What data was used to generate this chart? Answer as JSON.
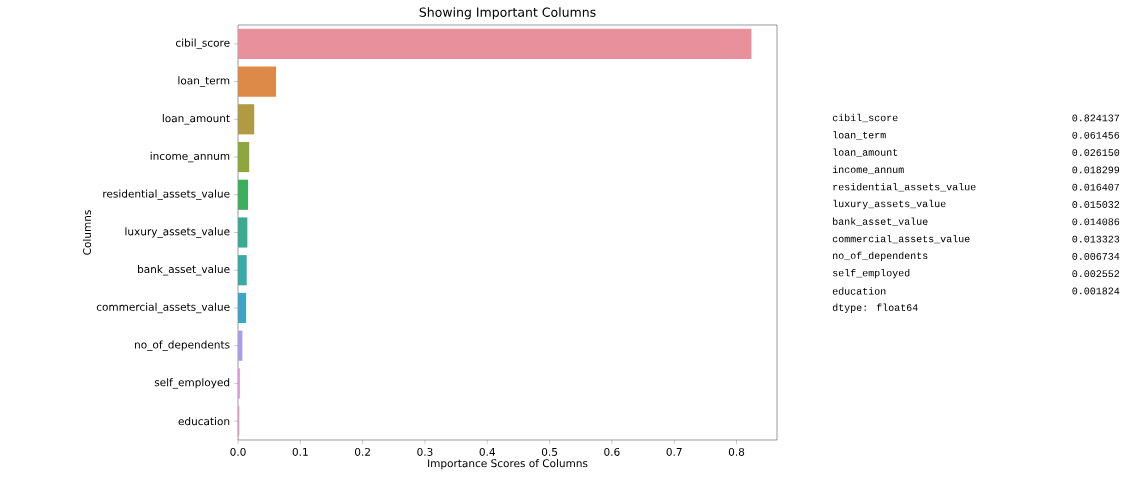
{
  "chart_data": [
    {
      "type": "bar",
      "orientation": "horizontal",
      "title": "Showing Important Columns",
      "xlabel": "Importance Scores of Columns",
      "ylabel": "Columns",
      "categories": [
        "cibil_score",
        "loan_term",
        "loan_amount",
        "income_annum",
        "residential_assets_value",
        "luxury_assets_value",
        "bank_asset_value",
        "commercial_assets_value",
        "no_of_dependents",
        "self_employed",
        "education"
      ],
      "values": [
        0.824,
        0.061,
        0.026,
        0.018,
        0.016,
        0.015,
        0.014,
        0.013,
        0.007,
        0.003,
        0.002
      ],
      "colors": [
        "#e8909c",
        "#dd8a48",
        "#b09a44",
        "#8fa63e",
        "#3cae5c",
        "#3aab91",
        "#39a9a7",
        "#3ea6c4",
        "#a89cf0",
        "#e78ee8",
        "#f08ab8"
      ],
      "xlim": [
        0,
        0.865
      ],
      "xticks": [
        {
          "value": 0,
          "label": "0.0"
        },
        0.1,
        0.2,
        0.3,
        0.4,
        0.5,
        0.6,
        0.7,
        0.8
      ]
    },
    {
      "type": "other",
      "categories": [
        "cibil_score",
        "loan_term",
        "loan_amount",
        "income_annum",
        "residential_assets_value",
        "luxury_assets_value",
        "bank_asset_value",
        "commercial_assets_value",
        "no_of_dependents",
        "self_employed",
        "education"
      ],
      "values": [
        0.824137,
        0.061456,
        0.02615,
        0.018299,
        0.016407,
        0.015032,
        0.014086,
        0.013323,
        0.006734,
        0.002552,
        0.001824
      ],
      "value_labels": [
        "0.824137",
        "0.061456",
        "0.026150",
        "0.018299",
        "0.016407",
        "0.015032",
        "0.014086",
        "0.013323",
        "0.006734",
        "0.002552",
        "0.001824"
      ],
      "annotations": [
        "dtype: float64"
      ]
    }
  ]
}
